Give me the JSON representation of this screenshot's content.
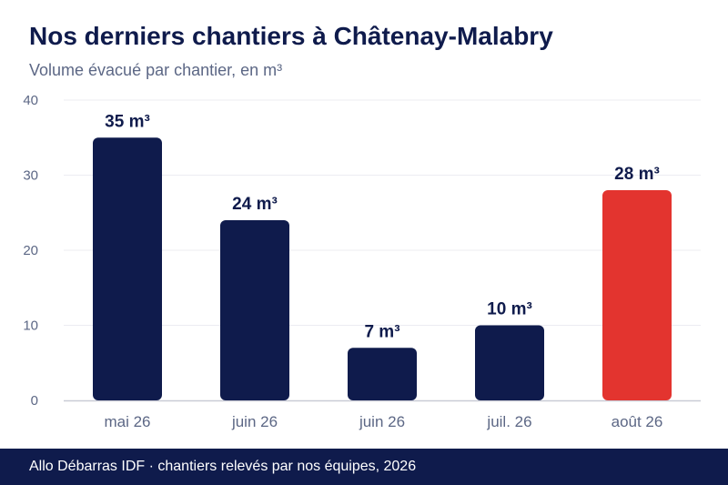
{
  "title": "Nos derniers chantiers à Châtenay-Malabry",
  "subtitle": "Volume évacué par chantier, en m³",
  "footer": "Allo Débarras IDF · chantiers relevés par nos équipes, 2026",
  "colors": {
    "bar": "#0f1b4c",
    "highlight": "#e3342f",
    "grid": "#ececf2",
    "axis": "#c9cbd6",
    "tick_text": "#5c6785",
    "label_text": "#0f1b4c"
  },
  "chart_data": {
    "type": "bar",
    "categories": [
      "mai 26",
      "juin 26",
      "juin 26",
      "juil. 26",
      "août 26"
    ],
    "values": [
      35,
      24,
      7,
      10,
      28
    ],
    "data_labels": [
      "35 m³",
      "24 m³",
      "7 m³",
      "10 m³",
      "28 m³"
    ],
    "highlight_index": 4,
    "xlabel": "",
    "ylabel": "",
    "ylim": [
      0,
      40
    ],
    "yticks": [
      0,
      10,
      20,
      30,
      40
    ],
    "grid": true,
    "legend": "none"
  }
}
